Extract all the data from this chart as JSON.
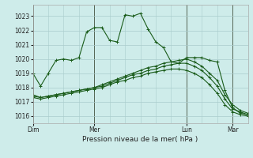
{
  "title": "",
  "xlabel": "Pression niveau de la mer( hPa )",
  "ylabel": "",
  "bg_color": "#ceecea",
  "line_color": "#1a5c1a",
  "grid_color_major": "#aacccc",
  "grid_color_minor": "#c8e4e2",
  "ylim": [
    1015.5,
    1023.8
  ],
  "yticks": [
    1016,
    1017,
    1018,
    1019,
    1020,
    1021,
    1022,
    1023
  ],
  "day_labels": [
    "Dim",
    "Mer",
    "Lun",
    "Mar"
  ],
  "day_positions": [
    0,
    8,
    20,
    26
  ],
  "xlim": [
    0,
    28
  ],
  "lines": [
    {
      "x": [
        0,
        1,
        2,
        3,
        4,
        5,
        6,
        7,
        8,
        9,
        10,
        11,
        12,
        13,
        14,
        15,
        16,
        17,
        18,
        19,
        20,
        21,
        22,
        23,
        24,
        25,
        26,
        27,
        28
      ],
      "y": [
        1019.0,
        1018.1,
        1019.0,
        1019.9,
        1020.0,
        1019.9,
        1020.1,
        1021.9,
        1022.2,
        1022.2,
        1021.3,
        1021.2,
        1023.1,
        1023.0,
        1023.2,
        1022.1,
        1021.2,
        1020.8,
        1019.8,
        1019.7,
        1020.1,
        1020.1,
        1020.1,
        1019.9,
        1019.8,
        1017.8,
        1016.6,
        1016.2,
        1016.1
      ]
    },
    {
      "x": [
        0,
        1,
        2,
        3,
        4,
        5,
        6,
        7,
        8,
        9,
        10,
        11,
        12,
        13,
        14,
        15,
        16,
        17,
        18,
        19,
        20,
        21,
        22,
        23,
        24,
        25,
        26,
        27,
        28
      ],
      "y": [
        1017.5,
        1017.3,
        1017.4,
        1017.5,
        1017.6,
        1017.7,
        1017.8,
        1017.9,
        1018.0,
        1018.2,
        1018.4,
        1018.6,
        1018.8,
        1019.0,
        1019.2,
        1019.4,
        1019.5,
        1019.7,
        1019.8,
        1019.9,
        1020.0,
        1019.8,
        1019.5,
        1019.0,
        1018.5,
        1017.5,
        1016.8,
        1016.4,
        1016.2
      ]
    },
    {
      "x": [
        0,
        1,
        2,
        3,
        4,
        5,
        6,
        7,
        8,
        9,
        10,
        11,
        12,
        13,
        14,
        15,
        16,
        17,
        18,
        19,
        20,
        21,
        22,
        23,
        24,
        25,
        26,
        27,
        28
      ],
      "y": [
        1017.4,
        1017.3,
        1017.4,
        1017.5,
        1017.6,
        1017.7,
        1017.8,
        1017.9,
        1018.0,
        1018.1,
        1018.3,
        1018.5,
        1018.7,
        1018.9,
        1019.0,
        1019.2,
        1019.3,
        1019.5,
        1019.6,
        1019.7,
        1019.7,
        1019.5,
        1019.2,
        1018.7,
        1018.1,
        1017.2,
        1016.5,
        1016.3,
        1016.1
      ]
    },
    {
      "x": [
        0,
        1,
        2,
        3,
        4,
        5,
        6,
        7,
        8,
        9,
        10,
        11,
        12,
        13,
        14,
        15,
        16,
        17,
        18,
        19,
        20,
        21,
        22,
        23,
        24,
        25,
        26,
        27,
        28
      ],
      "y": [
        1017.3,
        1017.2,
        1017.3,
        1017.4,
        1017.5,
        1017.6,
        1017.7,
        1017.8,
        1017.9,
        1018.0,
        1018.2,
        1018.4,
        1018.5,
        1018.7,
        1018.8,
        1019.0,
        1019.1,
        1019.2,
        1019.3,
        1019.3,
        1019.2,
        1019.0,
        1018.7,
        1018.2,
        1017.6,
        1016.8,
        1016.3,
        1016.1,
        1016.0
      ]
    }
  ]
}
